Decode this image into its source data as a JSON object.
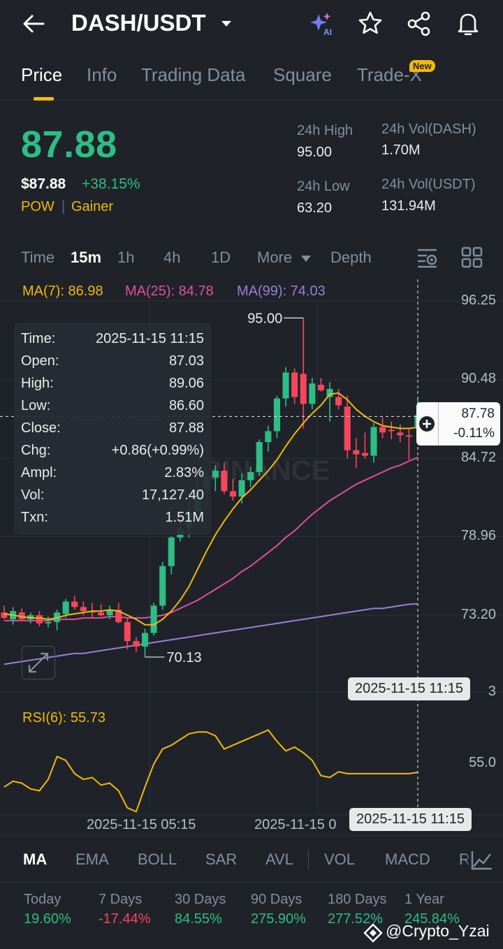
{
  "header": {
    "pair": "DASH/USDT",
    "ai_label": "AI"
  },
  "tabs": [
    {
      "label": "Price",
      "active": true
    },
    {
      "label": "Info"
    },
    {
      "label": "Trading Data"
    },
    {
      "label": "Square"
    },
    {
      "label": "Trade-X",
      "badge": "New"
    }
  ],
  "ticker": {
    "last_price": "87.88",
    "usd_price": "$87.88",
    "change_pct": "+38.15%",
    "tags": [
      "POW",
      "Gainer"
    ],
    "high_label": "24h High",
    "high": "95.00",
    "low_label": "24h Low",
    "low": "63.20",
    "vol_base_label": "24h Vol(DASH)",
    "vol_base": "1.70M",
    "vol_quote_label": "24h Vol(USDT)",
    "vol_quote": "131.94M"
  },
  "intervals": [
    {
      "label": "Time"
    },
    {
      "label": "15m",
      "active": true
    },
    {
      "label": "1h"
    },
    {
      "label": "4h"
    },
    {
      "label": "1D"
    },
    {
      "label": "More"
    },
    {
      "label": "Depth"
    }
  ],
  "ma_legend": {
    "ma7": "MA(7): 86.98",
    "ma25": "MA(25): 84.78",
    "ma99": "MA(99): 74.03"
  },
  "y_axis": [
    "96.25",
    "90.48",
    "84.72",
    "78.96",
    "73.20"
  ],
  "y_axis_partial": "3",
  "markers": {
    "high": "95.00",
    "low": "70.13"
  },
  "watermark_logo": "BINANCE",
  "tooltip": [
    {
      "k": "Time:",
      "v": "2025-11-15 11:15"
    },
    {
      "k": "Open:",
      "v": "87.03"
    },
    {
      "k": "High:",
      "v": "89.06"
    },
    {
      "k": "Low:",
      "v": "86.60"
    },
    {
      "k": "Close:",
      "v": "87.88"
    },
    {
      "k": "Chg:",
      "v": "+0.86(+0.99%)"
    },
    {
      "k": "Ampl:",
      "v": "2.83%"
    },
    {
      "k": "Vol:",
      "v": "17,127.40"
    },
    {
      "k": "Txn:",
      "v": "1.51M"
    }
  ],
  "crosshair": {
    "price": "87.78",
    "change": "-0.11%",
    "time_main": "2025-11-15 11:15",
    "time_rsi": "2025-11-15 11:15"
  },
  "rsi": {
    "label": "RSI(6): 55.73",
    "level": "55.0"
  },
  "x_axis": [
    "2025-11-15 05:15",
    "2025-11-15 0"
  ],
  "indicators": [
    {
      "label": "MA",
      "active": true
    },
    {
      "label": "EMA"
    },
    {
      "label": "BOLL"
    },
    {
      "label": "SAR"
    },
    {
      "label": "AVL"
    },
    {
      "label": "VOL"
    },
    {
      "label": "MACD"
    },
    {
      "label": "R"
    }
  ],
  "performance": [
    {
      "period": "Today",
      "value": "19.60%",
      "dir": "up"
    },
    {
      "period": "7 Days",
      "value": "-17.44%",
      "dir": "down"
    },
    {
      "period": "30 Days",
      "value": "84.55%",
      "dir": "up"
    },
    {
      "period": "90 Days",
      "value": "275.90%",
      "dir": "up"
    },
    {
      "period": "180 Days",
      "value": "277.52%",
      "dir": "up"
    },
    {
      "period": "1 Year",
      "value": "245.84%",
      "dir": "up"
    }
  ],
  "source_watermark": "@Crypto_Yzai",
  "colors": {
    "up": "#2ebd85",
    "down": "#f6465d",
    "accent": "#f0b90b",
    "ma7": "#f0b90b",
    "ma25": "#e04f9f",
    "ma99": "#9b7ed8"
  },
  "chart_data": {
    "type": "candlestick",
    "interval": "15m",
    "candles": [
      {
        "o": 73.4,
        "h": 73.9,
        "l": 72.9,
        "c": 73.0
      },
      {
        "o": 72.9,
        "h": 73.8,
        "l": 72.5,
        "c": 73.5
      },
      {
        "o": 73.4,
        "h": 73.7,
        "l": 72.8,
        "c": 72.9
      },
      {
        "o": 72.9,
        "h": 73.4,
        "l": 72.6,
        "c": 73.2
      },
      {
        "o": 73.2,
        "h": 73.5,
        "l": 72.4,
        "c": 72.6
      },
      {
        "o": 72.6,
        "h": 73.1,
        "l": 72.3,
        "c": 72.7
      },
      {
        "o": 72.7,
        "h": 73.6,
        "l": 72.1,
        "c": 73.4
      },
      {
        "o": 73.3,
        "h": 74.4,
        "l": 73.0,
        "c": 74.2
      },
      {
        "o": 74.2,
        "h": 74.6,
        "l": 73.6,
        "c": 73.8
      },
      {
        "o": 73.8,
        "h": 74.2,
        "l": 73.2,
        "c": 73.5
      },
      {
        "o": 73.5,
        "h": 74.1,
        "l": 73.0,
        "c": 73.4
      },
      {
        "o": 73.4,
        "h": 74.0,
        "l": 73.1,
        "c": 73.2
      },
      {
        "o": 73.2,
        "h": 73.9,
        "l": 72.9,
        "c": 73.6
      },
      {
        "o": 73.6,
        "h": 74.1,
        "l": 72.6,
        "c": 72.7
      },
      {
        "o": 72.7,
        "h": 73.0,
        "l": 70.7,
        "c": 71.3
      },
      {
        "o": 71.3,
        "h": 71.6,
        "l": 70.5,
        "c": 70.9
      },
      {
        "o": 70.9,
        "h": 72.2,
        "l": 70.13,
        "c": 71.9
      },
      {
        "o": 71.9,
        "h": 74.1,
        "l": 71.7,
        "c": 73.9
      },
      {
        "o": 73.9,
        "h": 77.1,
        "l": 73.6,
        "c": 76.8
      },
      {
        "o": 76.8,
        "h": 79.0,
        "l": 76.2,
        "c": 78.9
      },
      {
        "o": 78.9,
        "h": 80.7,
        "l": 78.6,
        "c": 79.6
      },
      {
        "o": 79.6,
        "h": 82.2,
        "l": 78.9,
        "c": 80.8
      },
      {
        "o": 80.8,
        "h": 83.6,
        "l": 79.9,
        "c": 82.4
      },
      {
        "o": 82.4,
        "h": 83.8,
        "l": 81.1,
        "c": 83.3
      },
      {
        "o": 83.3,
        "h": 84.2,
        "l": 82.3,
        "c": 83.8
      },
      {
        "o": 83.8,
        "h": 84.4,
        "l": 82.1,
        "c": 82.3
      },
      {
        "o": 82.3,
        "h": 83.2,
        "l": 81.6,
        "c": 81.9
      },
      {
        "o": 81.9,
        "h": 83.6,
        "l": 81.4,
        "c": 83.1
      },
      {
        "o": 83.1,
        "h": 84.1,
        "l": 82.6,
        "c": 83.7
      },
      {
        "o": 83.7,
        "h": 86.1,
        "l": 83.4,
        "c": 85.9
      },
      {
        "o": 85.9,
        "h": 87.1,
        "l": 85.2,
        "c": 86.7
      },
      {
        "o": 86.7,
        "h": 89.3,
        "l": 86.2,
        "c": 89.1
      },
      {
        "o": 89.1,
        "h": 91.4,
        "l": 88.5,
        "c": 91.0
      },
      {
        "o": 91.0,
        "h": 91.3,
        "l": 88.7,
        "c": 89.2
      },
      {
        "o": 90.9,
        "h": 95.0,
        "l": 86.9,
        "c": 88.7
      },
      {
        "o": 88.7,
        "h": 90.6,
        "l": 88.3,
        "c": 90.2
      },
      {
        "o": 90.1,
        "h": 90.6,
        "l": 89.6,
        "c": 89.7
      },
      {
        "o": 89.2,
        "h": 90.3,
        "l": 87.4,
        "c": 89.8
      },
      {
        "o": 89.2,
        "h": 89.8,
        "l": 88.3,
        "c": 88.6
      },
      {
        "o": 88.5,
        "h": 89.3,
        "l": 84.7,
        "c": 85.3
      },
      {
        "o": 85.3,
        "h": 86.2,
        "l": 84.0,
        "c": 85.0
      },
      {
        "o": 85.1,
        "h": 86.6,
        "l": 84.7,
        "c": 84.9
      },
      {
        "o": 84.9,
        "h": 87.3,
        "l": 84.4,
        "c": 87.0
      },
      {
        "o": 87.0,
        "h": 87.7,
        "l": 86.2,
        "c": 86.6
      },
      {
        "o": 86.8,
        "h": 87.4,
        "l": 86.1,
        "c": 86.7
      },
      {
        "o": 86.6,
        "h": 87.2,
        "l": 85.9,
        "c": 86.4
      },
      {
        "o": 86.4,
        "h": 86.9,
        "l": 84.6,
        "c": 86.3
      },
      {
        "o": 87.03,
        "h": 89.06,
        "l": 86.6,
        "c": 87.88
      }
    ],
    "ma7": [
      73.3,
      73.2,
      73.1,
      73.0,
      73.0,
      72.9,
      73.0,
      73.2,
      73.3,
      73.4,
      73.5,
      73.5,
      73.6,
      73.5,
      73.2,
      72.9,
      72.5,
      72.5,
      72.9,
      73.5,
      74.3,
      75.3,
      76.6,
      77.9,
      79.1,
      80.1,
      81.0,
      81.8,
      82.4,
      83.1,
      83.8,
      84.6,
      85.6,
      86.5,
      87.3,
      88.0,
      88.6,
      89.4,
      89.5,
      89.0,
      88.3,
      87.8,
      87.4,
      87.1,
      87.0,
      86.9,
      86.9,
      86.98
    ],
    "ma25": [
      72.8,
      72.8,
      72.8,
      72.8,
      72.8,
      72.8,
      72.9,
      72.9,
      72.9,
      73.0,
      73.0,
      73.0,
      73.1,
      73.1,
      73.0,
      73.0,
      73.0,
      73.1,
      73.2,
      73.4,
      73.7,
      74.0,
      74.3,
      74.7,
      75.1,
      75.5,
      75.9,
      76.4,
      76.8,
      77.3,
      77.8,
      78.3,
      78.9,
      79.4,
      80.0,
      80.6,
      81.1,
      81.6,
      82.0,
      82.4,
      82.8,
      83.1,
      83.4,
      83.7,
      84.0,
      84.2,
      84.5,
      84.78
    ],
    "ma99": [
      69.6,
      69.7,
      69.8,
      69.9,
      70.0,
      70.1,
      70.2,
      70.3,
      70.4,
      70.4,
      70.5,
      70.6,
      70.7,
      70.8,
      70.9,
      71.0,
      71.1,
      71.2,
      71.3,
      71.4,
      71.5,
      71.6,
      71.7,
      71.8,
      71.9,
      72.0,
      72.1,
      72.2,
      72.3,
      72.4,
      72.5,
      72.6,
      72.7,
      72.8,
      72.9,
      73.0,
      73.1,
      73.2,
      73.3,
      73.4,
      73.5,
      73.6,
      73.7,
      73.7,
      73.8,
      73.9,
      74.0,
      74.03
    ],
    "rsi6": [
      48,
      51,
      50,
      47,
      46,
      52,
      64,
      62,
      55,
      52,
      53,
      49,
      50,
      46,
      37,
      35,
      48,
      60,
      68,
      70,
      73,
      76,
      77,
      77,
      75,
      68,
      70,
      72,
      74,
      76,
      78,
      72,
      67,
      69,
      66,
      62,
      54,
      53,
      56,
      55,
      55,
      55,
      55,
      55,
      55,
      55,
      55,
      55.73
    ],
    "ylim": [
      67.44,
      96.25
    ],
    "yticks": [
      96.25,
      90.48,
      84.72,
      78.96,
      73.2
    ],
    "rsi_level": 55.0
  }
}
